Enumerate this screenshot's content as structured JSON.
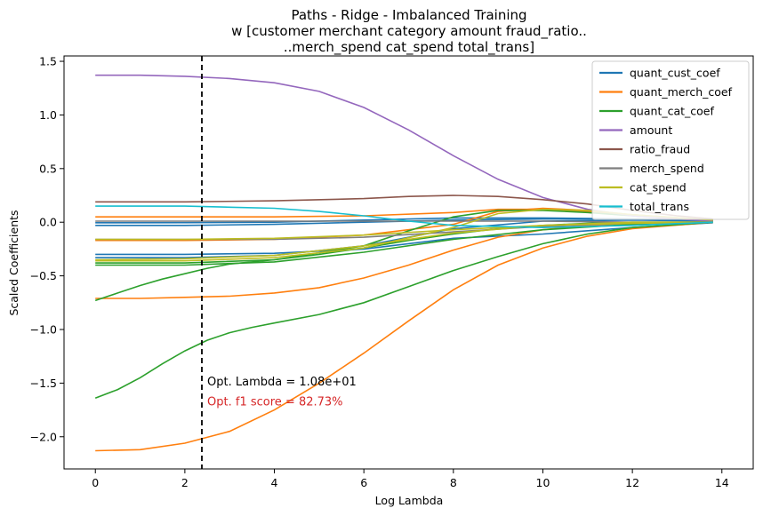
{
  "chart_data": {
    "type": "line",
    "title_lines": [
      "Paths - Ridge - Imbalanced Training",
      "w [customer merchant category amount fraud_ratio..",
      "..merch_spend cat_spend total_trans]"
    ],
    "xlabel": "Log Lambda",
    "ylabel": "Scaled Coefficients",
    "xlim": [
      -0.7,
      14.7
    ],
    "ylim": [
      -2.3,
      1.55
    ],
    "xticks": [
      0,
      2,
      4,
      6,
      8,
      10,
      12,
      14
    ],
    "xtick_labels": [
      "0",
      "2",
      "4",
      "6",
      "8",
      "10",
      "12",
      "14"
    ],
    "yticks": [
      -2.0,
      -1.5,
      -1.0,
      -0.5,
      0.0,
      0.5,
      1.0,
      1.5
    ],
    "ytick_labels": [
      "−2.0",
      "−1.5",
      "−1.0",
      "−0.5",
      "0.0",
      "0.5",
      "1.0",
      "1.5"
    ],
    "grid": false,
    "legend_position": "top-right",
    "vline": {
      "x": 2.38,
      "style": "dashed",
      "color": "#000000"
    },
    "annotations": [
      {
        "text": "Opt. Lambda = 1.08e+01",
        "x": 2.5,
        "y": -1.52,
        "color": "#000000"
      },
      {
        "text": "Opt. f1 score = 82.73%",
        "x": 2.5,
        "y": -1.71,
        "color": "#d62728"
      }
    ],
    "series": [
      {
        "name": "quant_cust_coef",
        "color": "#1f77b4",
        "lines": [
          {
            "x": [
              0,
              2,
              4,
              6,
              8,
              10,
              12,
              13.8
            ],
            "y": [
              -0.3,
              -0.3,
              -0.29,
              -0.25,
              -0.15,
              -0.11,
              -0.05,
              -0.005
            ]
          },
          {
            "x": [
              0,
              2,
              4,
              6,
              8,
              10,
              12,
              13.8
            ],
            "y": [
              -0.03,
              -0.03,
              -0.02,
              0.0,
              0.02,
              0.03,
              0.03,
              0.02
            ]
          },
          {
            "x": [
              0,
              2,
              4,
              6,
              8,
              10,
              12,
              13.8
            ],
            "y": [
              -0.005,
              -0.004,
              0.0,
              0.02,
              0.04,
              0.04,
              0.03,
              0.02
            ]
          },
          {
            "x": [
              0,
              2,
              4,
              6,
              8,
              10,
              12,
              13.8
            ],
            "y": [
              -0.33,
              -0.33,
              -0.31,
              -0.22,
              -0.06,
              0.01,
              0.02,
              0.01
            ]
          }
        ]
      },
      {
        "name": "quant_merch_coef",
        "color": "#ff7f0e",
        "lines": [
          {
            "x": [
              0,
              1,
              2,
              3,
              4,
              5,
              6,
              7,
              8,
              9,
              10,
              11,
              12,
              13.8
            ],
            "y": [
              -2.13,
              -2.12,
              -2.06,
              -1.95,
              -1.75,
              -1.5,
              -1.22,
              -0.92,
              -0.63,
              -0.4,
              -0.24,
              -0.13,
              -0.06,
              0.0
            ]
          },
          {
            "x": [
              0,
              1,
              2,
              3,
              4,
              5,
              6,
              7,
              8,
              9,
              10,
              11,
              12,
              13.8
            ],
            "y": [
              -0.71,
              -0.71,
              -0.7,
              -0.69,
              -0.66,
              -0.61,
              -0.52,
              -0.4,
              -0.26,
              -0.14,
              -0.07,
              -0.03,
              -0.01,
              0.0
            ]
          },
          {
            "x": [
              0,
              2,
              4,
              6,
              8,
              9,
              10,
              11,
              12,
              13.8
            ],
            "y": [
              0.05,
              0.05,
              0.05,
              0.06,
              0.09,
              0.12,
              0.12,
              0.1,
              0.07,
              0.02
            ]
          },
          {
            "x": [
              0,
              2,
              4,
              6,
              8,
              9,
              10,
              11,
              12,
              13.8
            ],
            "y": [
              -0.17,
              -0.17,
              -0.16,
              -0.12,
              -0.02,
              0.1,
              0.13,
              0.11,
              0.07,
              0.02
            ]
          }
        ]
      },
      {
        "name": "quant_cat_coef",
        "color": "#2ca02c",
        "lines": [
          {
            "x": [
              0,
              0.5,
              1,
              1.5,
              2,
              2.5,
              3,
              3.5,
              4,
              5,
              6,
              7,
              8,
              9,
              10,
              11,
              12,
              13.8
            ],
            "y": [
              -1.64,
              -1.56,
              -1.45,
              -1.32,
              -1.2,
              -1.1,
              -1.03,
              -0.98,
              -0.94,
              -0.86,
              -0.75,
              -0.6,
              -0.45,
              -0.32,
              -0.2,
              -0.11,
              -0.05,
              0.0
            ]
          },
          {
            "x": [
              0,
              0.5,
              1,
              1.5,
              2,
              2.5,
              3,
              4,
              5,
              6,
              7,
              8,
              9,
              10,
              11,
              12,
              13.8
            ],
            "y": [
              -0.73,
              -0.66,
              -0.59,
              -0.53,
              -0.48,
              -0.43,
              -0.39,
              -0.35,
              -0.3,
              -0.24,
              -0.17,
              -0.11,
              -0.06,
              -0.03,
              -0.01,
              0.0,
              0.0
            ]
          },
          {
            "x": [
              0,
              2,
              4,
              6,
              7,
              8,
              9,
              10,
              11,
              12,
              13.8
            ],
            "y": [
              -0.38,
              -0.38,
              -0.35,
              -0.22,
              -0.08,
              0.05,
              0.11,
              0.11,
              0.09,
              0.06,
              0.01
            ]
          },
          {
            "x": [
              0,
              2,
              4,
              6,
              8,
              10,
              12,
              13.8
            ],
            "y": [
              -0.4,
              -0.4,
              -0.37,
              -0.28,
              -0.16,
              -0.07,
              -0.02,
              0.0
            ]
          }
        ]
      },
      {
        "name": "amount",
        "color": "#9467bd",
        "lines": [
          {
            "x": [
              0,
              1,
              2,
              3,
              4,
              5,
              6,
              7,
              8,
              9,
              10,
              11,
              12,
              13,
              13.8
            ],
            "y": [
              1.37,
              1.37,
              1.36,
              1.34,
              1.3,
              1.22,
              1.07,
              0.86,
              0.62,
              0.4,
              0.23,
              0.12,
              0.06,
              0.03,
              0.01
            ]
          }
        ]
      },
      {
        "name": "ratio_fraud",
        "color": "#8c564b",
        "lines": [
          {
            "x": [
              0,
              2,
              4,
              6,
              7,
              8,
              9,
              10,
              11,
              12,
              13,
              13.8
            ],
            "y": [
              0.19,
              0.19,
              0.2,
              0.22,
              0.24,
              0.25,
              0.24,
              0.21,
              0.17,
              0.11,
              0.06,
              0.03
            ]
          }
        ]
      },
      {
        "name": "merch_spend",
        "color": "#7f7f7f",
        "lines": [
          {
            "x": [
              0,
              2,
              4,
              6,
              8,
              10,
              12,
              13.8
            ],
            "y": [
              -0.16,
              -0.16,
              -0.16,
              -0.14,
              -0.09,
              -0.04,
              -0.01,
              0.0
            ]
          },
          {
            "x": [
              0,
              2,
              4,
              6,
              8,
              10,
              12,
              13.8
            ],
            "y": [
              0.01,
              0.01,
              0.01,
              0.01,
              0.01,
              0.01,
              0.0,
              0.0
            ]
          }
        ]
      },
      {
        "name": "cat_spend",
        "color": "#bcbd22",
        "lines": [
          {
            "x": [
              0,
              2,
              4,
              6,
              8,
              10,
              12,
              13.8
            ],
            "y": [
              -0.35,
              -0.34,
              -0.31,
              -0.22,
              -0.1,
              -0.03,
              0.0,
              0.0
            ]
          },
          {
            "x": [
              0,
              2,
              4,
              6,
              8,
              9,
              10,
              11,
              12,
              13.8
            ],
            "y": [
              -0.36,
              -0.36,
              -0.33,
              -0.24,
              -0.05,
              0.08,
              0.12,
              0.11,
              0.07,
              0.02
            ]
          },
          {
            "x": [
              0,
              2,
              4,
              6,
              8,
              10,
              12,
              13.8
            ],
            "y": [
              -0.16,
              -0.16,
              -0.15,
              -0.12,
              -0.07,
              -0.03,
              -0.01,
              0.0
            ]
          }
        ]
      },
      {
        "name": "total_trans",
        "color": "#17becf",
        "lines": [
          {
            "x": [
              0,
              2,
              3,
              4,
              5,
              6,
              7,
              8,
              10,
              12,
              13.8
            ],
            "y": [
              0.15,
              0.15,
              0.14,
              0.13,
              0.1,
              0.06,
              0.01,
              -0.03,
              -0.05,
              -0.03,
              0.0
            ]
          }
        ]
      }
    ]
  }
}
